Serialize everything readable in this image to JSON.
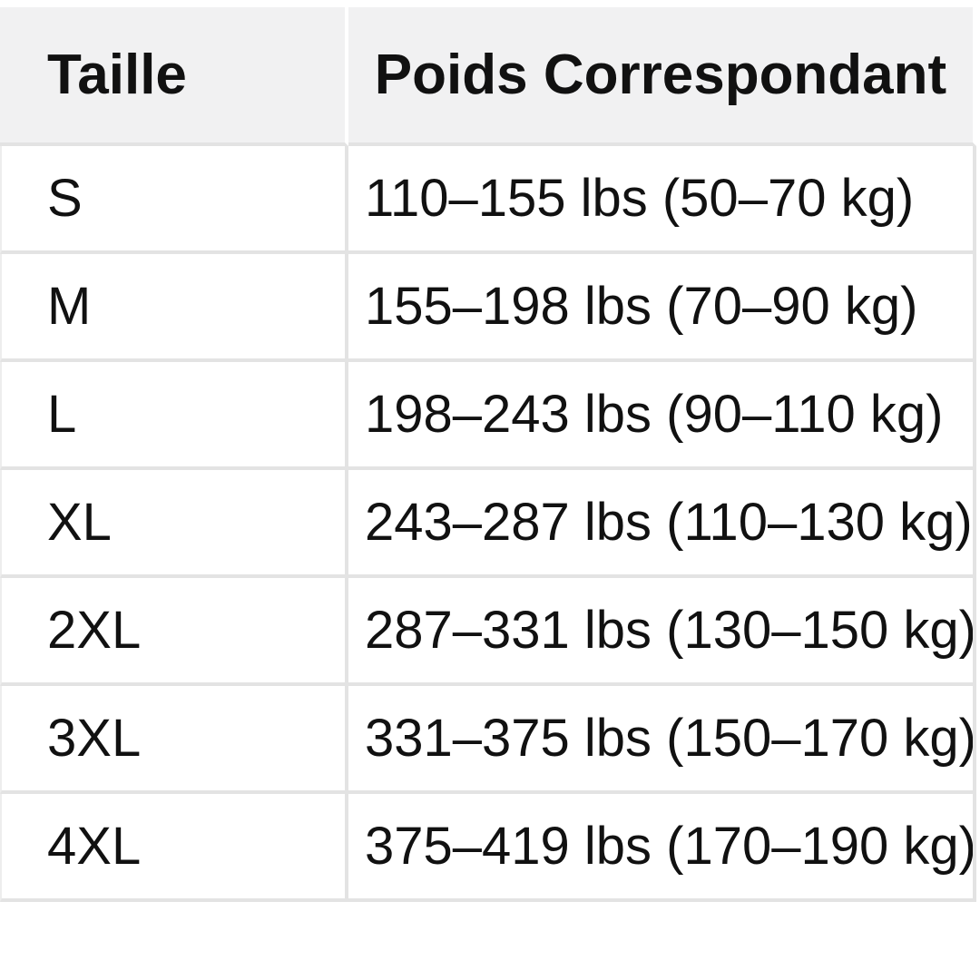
{
  "colors": {
    "page-bg": "#ffffff",
    "header-bg": "#f1f1f2",
    "border": "#e3e3e3",
    "border-soft": "#ededed",
    "text": "#111111"
  },
  "chart_data": {
    "type": "table",
    "title": "",
    "columns": [
      "Taille",
      "Poids Correspondant"
    ],
    "rows": [
      [
        "S",
        "110–155 lbs (50–70 kg)"
      ],
      [
        "M",
        "155–198 lbs (70–90 kg)"
      ],
      [
        "L",
        "198–243 lbs (90–110 kg)"
      ],
      [
        "XL",
        "243–287 lbs (110–130 kg)"
      ],
      [
        "2XL",
        "287–331 lbs (130–150 kg)"
      ],
      [
        "3XL",
        "331–375 lbs (150–170 kg)"
      ],
      [
        "4XL",
        "375–419 lbs (170–190 kg)"
      ]
    ]
  }
}
